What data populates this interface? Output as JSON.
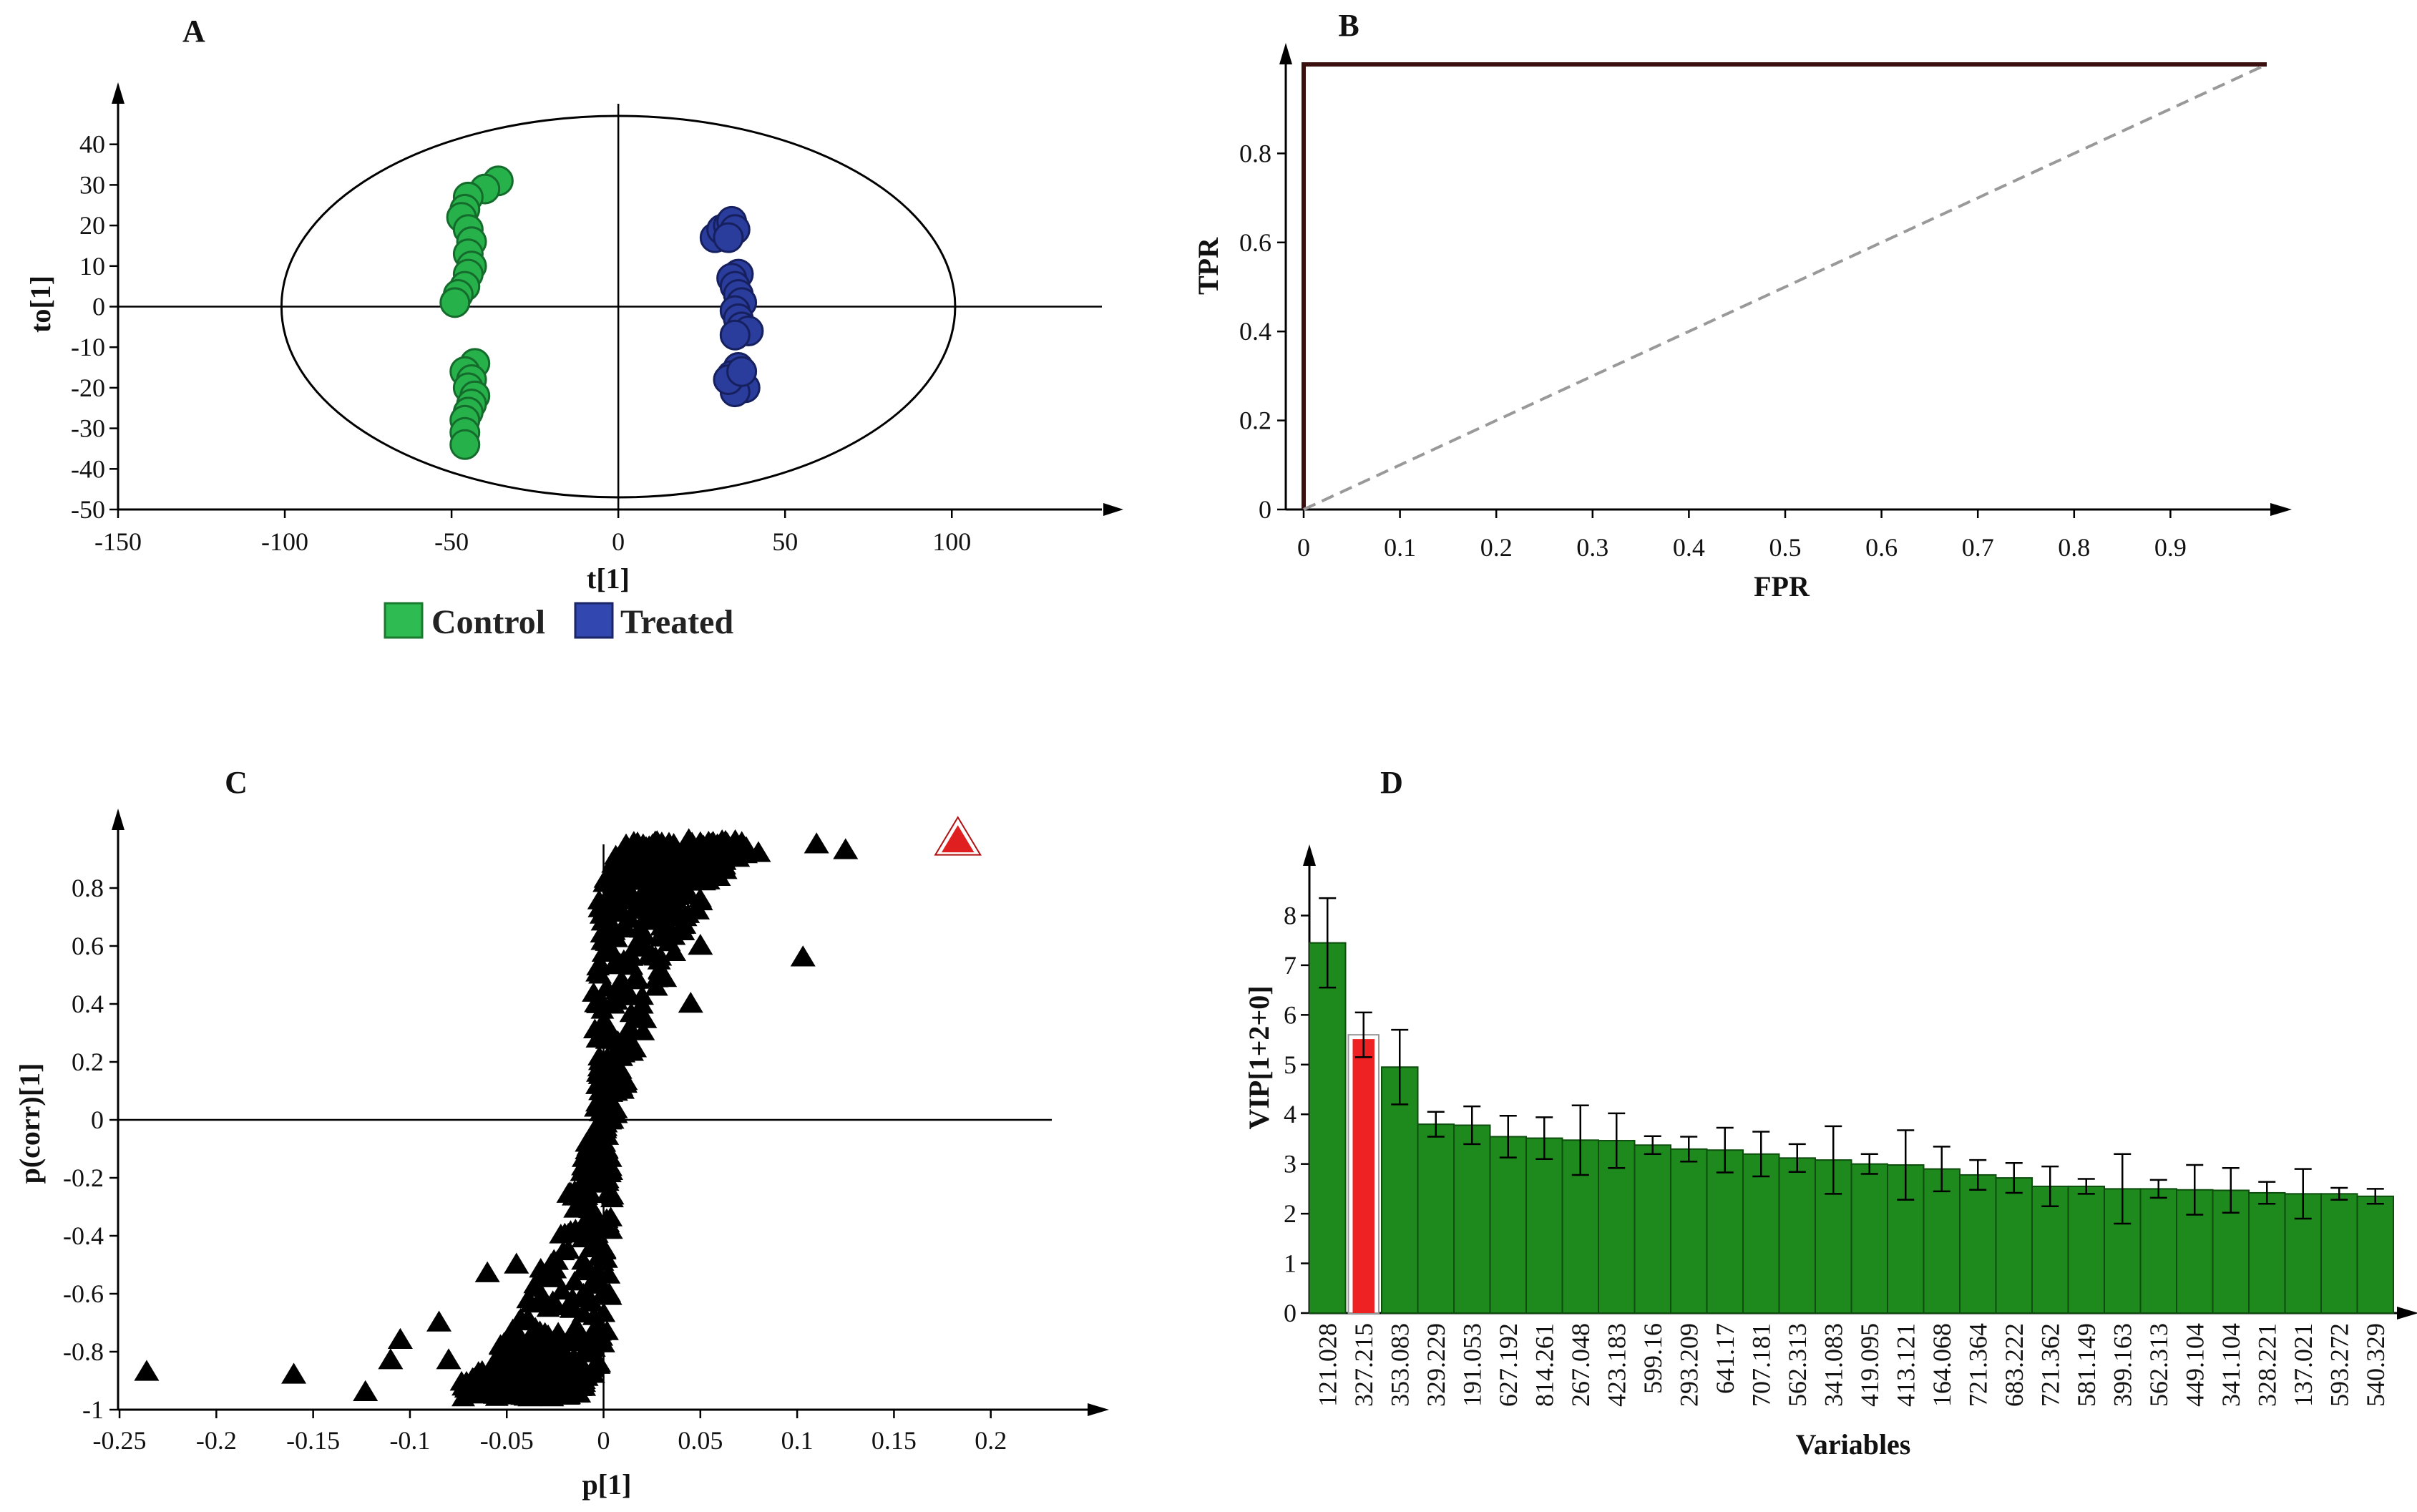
{
  "chart_data": [
    {
      "panel": "A",
      "type": "scatter",
      "title": "A",
      "xlabel": "t[1]",
      "ylabel": "to[1]",
      "xlim": [
        -150,
        145
      ],
      "ylim": [
        -50,
        50
      ],
      "xticks": [
        -150,
        -100,
        -50,
        0,
        50,
        100
      ],
      "yticks": [
        -50,
        -40,
        -30,
        -20,
        -10,
        0,
        10,
        20,
        30,
        40
      ],
      "ellipse": {
        "rx": 101,
        "ry": 47
      },
      "legend": [
        {
          "name": "Control",
          "color": "#1fa33a"
        },
        {
          "name": "Treated",
          "color": "#2b3d9e"
        }
      ],
      "series": [
        {
          "name": "Control",
          "color": "#27b14a",
          "points": [
            [
              -36,
              31
            ],
            [
              -40,
              29
            ],
            [
              -45,
              27
            ],
            [
              -46,
              24
            ],
            [
              -47,
              22
            ],
            [
              -45,
              19
            ],
            [
              -44,
              16
            ],
            [
              -45,
              13
            ],
            [
              -44,
              10
            ],
            [
              -45,
              8
            ],
            [
              -46,
              5
            ],
            [
              -48,
              3
            ],
            [
              -49,
              1
            ],
            [
              -43,
              -14
            ],
            [
              -46,
              -16
            ],
            [
              -44,
              -18
            ],
            [
              -45,
              -20
            ],
            [
              -43,
              -22
            ],
            [
              -44,
              -24
            ],
            [
              -45,
              -26
            ],
            [
              -46,
              -28
            ],
            [
              -46,
              -31
            ],
            [
              -46,
              -34
            ]
          ]
        },
        {
          "name": "Treated",
          "color": "#2a3c9c",
          "points": [
            [
              29,
              17
            ],
            [
              31,
              19
            ],
            [
              33,
              20
            ],
            [
              34,
              21
            ],
            [
              35,
              19
            ],
            [
              33,
              17
            ],
            [
              36,
              8
            ],
            [
              34,
              7
            ],
            [
              35,
              5
            ],
            [
              36,
              3
            ],
            [
              37,
              1
            ],
            [
              35,
              -1
            ],
            [
              36,
              -3
            ],
            [
              37,
              -5
            ],
            [
              39,
              -6
            ],
            [
              35,
              -7
            ],
            [
              36,
              -15
            ],
            [
              34,
              -17
            ],
            [
              36,
              -19
            ],
            [
              38,
              -20
            ],
            [
              35,
              -21
            ],
            [
              33,
              -18
            ],
            [
              37,
              -16
            ]
          ]
        }
      ]
    },
    {
      "panel": "B",
      "type": "line",
      "title": "B",
      "xlabel": "FPR",
      "ylabel": "TPR",
      "xlim": [
        0,
        1
      ],
      "ylim": [
        0,
        1
      ],
      "xticks": [
        0,
        0.1,
        0.2,
        0.3,
        0.4,
        0.5,
        0.6,
        0.7,
        0.8,
        0.9
      ],
      "yticks": [
        0,
        0.2,
        0.4,
        0.6,
        0.8
      ],
      "series": [
        {
          "name": "ROC",
          "x": [
            0,
            0,
            1
          ],
          "y": [
            0,
            1,
            1
          ],
          "color": "#3a0f10"
        },
        {
          "name": "Reference",
          "x": [
            0,
            1
          ],
          "y": [
            0,
            1
          ],
          "color": "#999999",
          "dashed": true
        }
      ]
    },
    {
      "panel": "C",
      "type": "scatter",
      "title": "C",
      "xlabel": "p[1]",
      "ylabel": "p(corr)[1]",
      "xlim": [
        -0.26,
        0.25
      ],
      "ylim": [
        -1,
        1
      ],
      "xticks": [
        -0.25,
        -0.2,
        -0.15,
        -0.1,
        -0.05,
        0,
        0.05,
        0.1,
        0.15,
        0.2
      ],
      "yticks": [
        -1,
        -0.8,
        -0.6,
        -0.4,
        -0.2,
        0,
        0.2,
        0.4,
        0.6,
        0.8
      ],
      "highlight": {
        "x": 0.183,
        "y": 0.97,
        "color": "#e02020"
      },
      "outliers": [
        [
          -0.236,
          -0.87
        ],
        [
          -0.16,
          -0.88
        ],
        [
          -0.123,
          -0.94
        ],
        [
          -0.11,
          -0.83
        ],
        [
          -0.105,
          -0.76
        ],
        [
          -0.085,
          -0.7
        ],
        [
          -0.08,
          -0.83
        ],
        [
          -0.06,
          -0.53
        ],
        [
          -0.045,
          -0.5
        ],
        [
          0.103,
          0.56
        ],
        [
          0.125,
          0.93
        ],
        [
          0.11,
          0.95
        ],
        [
          0.08,
          0.92
        ],
        [
          0.05,
          0.6
        ],
        [
          0.045,
          0.4
        ]
      ]
    },
    {
      "panel": "D",
      "type": "bar",
      "title": "D",
      "xlabel": "Variables",
      "ylabel": "VIP[1+2+0]",
      "ylim": [
        0,
        9
      ],
      "yticks": [
        0,
        1,
        2,
        3,
        4,
        5,
        6,
        7,
        8
      ],
      "bar_color": "#1e8a1e",
      "highlight_index": 1,
      "highlight_color": "#ee2222",
      "categories": [
        "121.028",
        "327.215",
        "353.083",
        "329.229",
        "191.053",
        "627.192",
        "814.261",
        "267.048",
        "423.183",
        "599.16",
        "293.209",
        "641.17",
        "707.181",
        "562.313",
        "341.083",
        "419.095",
        "413.121",
        "164.068",
        "721.364",
        "683.222",
        "721.362",
        "581.149",
        "399.163",
        "562.313",
        "449.104",
        "341.104",
        "328.221",
        "137.021",
        "593.272",
        "540.329"
      ],
      "values": [
        7.45,
        5.6,
        4.95,
        3.8,
        3.78,
        3.55,
        3.52,
        3.48,
        3.47,
        3.38,
        3.3,
        3.28,
        3.2,
        3.12,
        3.08,
        3.0,
        2.98,
        2.9,
        2.78,
        2.72,
        2.55,
        2.55,
        2.5,
        2.5,
        2.48,
        2.47,
        2.42,
        2.4,
        2.4,
        2.35
      ],
      "errors": [
        0.9,
        0.45,
        0.75,
        0.25,
        0.38,
        0.42,
        0.42,
        0.7,
        0.55,
        0.18,
        0.25,
        0.45,
        0.45,
        0.28,
        0.68,
        0.2,
        0.7,
        0.45,
        0.3,
        0.3,
        0.4,
        0.15,
        0.7,
        0.18,
        0.5,
        0.45,
        0.22,
        0.5,
        0.12,
        0.15
      ]
    }
  ]
}
